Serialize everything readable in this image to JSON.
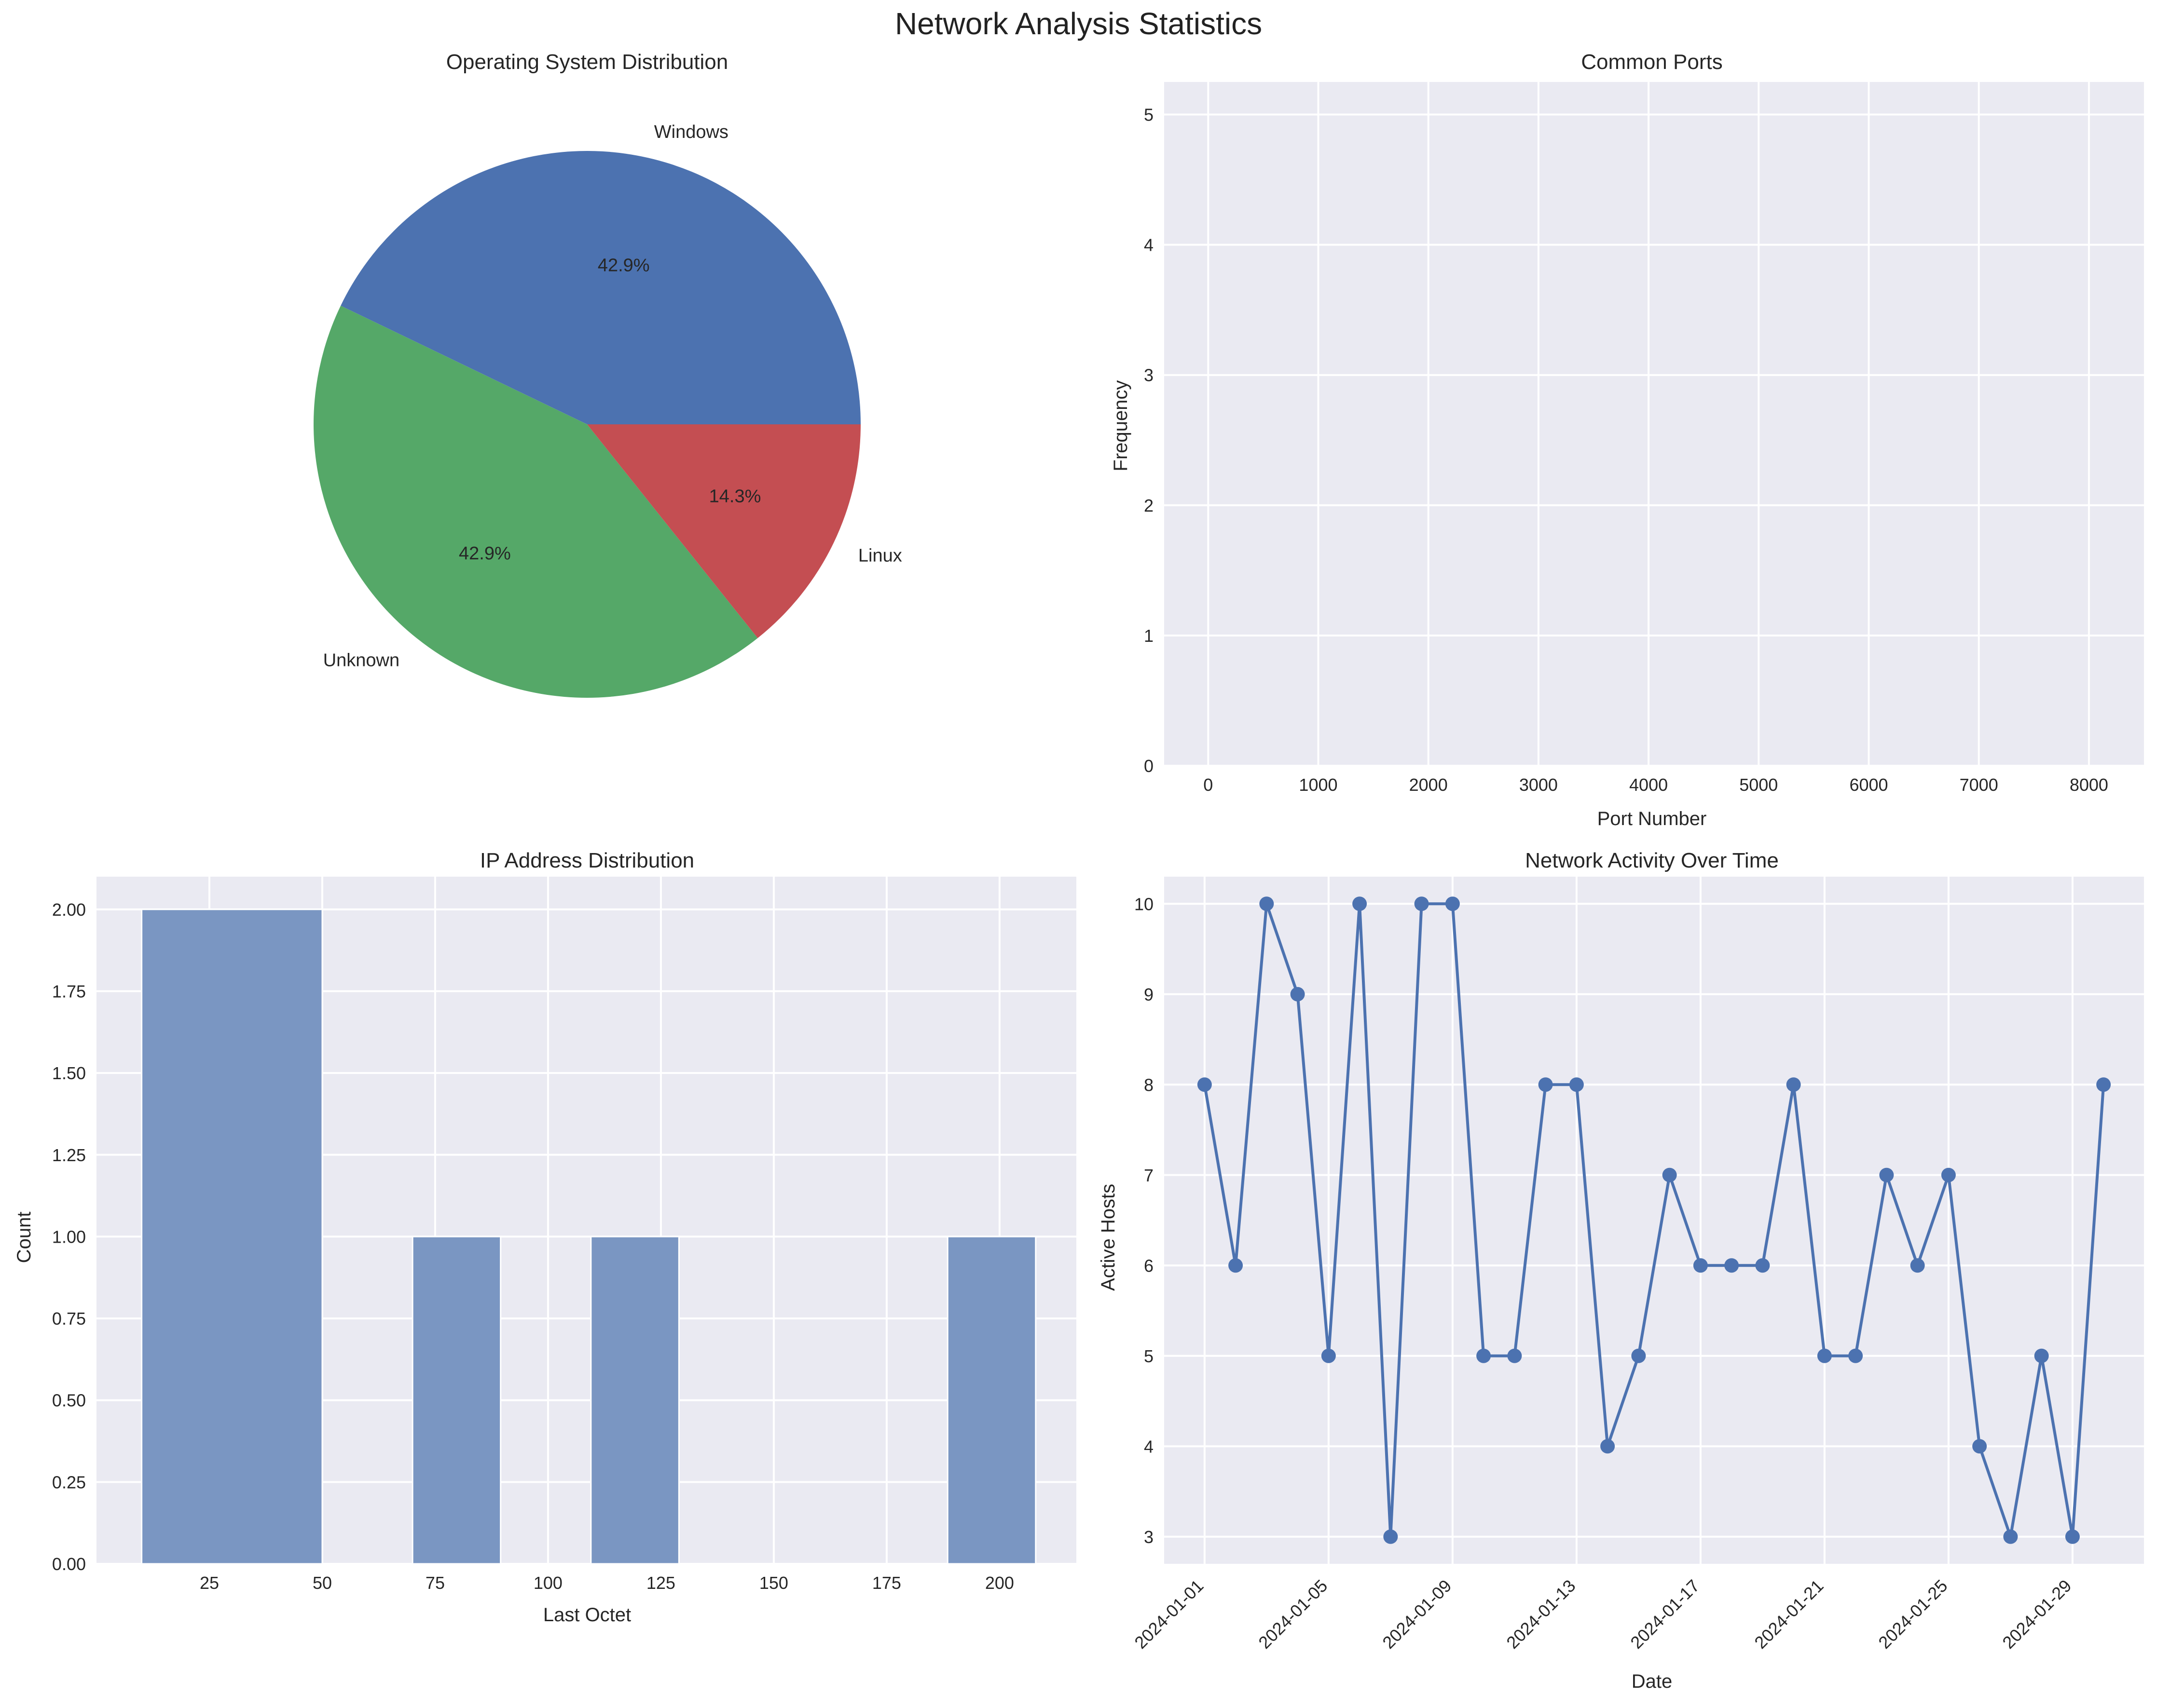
{
  "title": "Network Analysis Statistics",
  "colors": {
    "plot_bg": "#EAEAF2",
    "grid": "#FFFFFF",
    "blue": "#4C72B0",
    "green": "#55A868",
    "red": "#C44E52",
    "bar": "#7A96C2"
  },
  "chart_data": [
    {
      "type": "pie",
      "title": "Operating System Distribution",
      "labels": [
        "Windows",
        "Unknown",
        "Linux"
      ],
      "values": [
        3,
        3,
        1
      ],
      "percent_labels": [
        "42.9%",
        "42.9%",
        "14.3%"
      ],
      "colors": [
        "#4C72B0",
        "#55A868",
        "#C44E52"
      ],
      "start_angle_deg": 0
    },
    {
      "type": "bar",
      "title": "Common Ports",
      "xlabel": "Port Number",
      "ylabel": "Frequency",
      "xlim": [
        -400,
        8500
      ],
      "ylim": [
        0,
        5.25
      ],
      "xticks": [
        0,
        1000,
        2000,
        3000,
        4000,
        5000,
        6000,
        7000,
        8000
      ],
      "yticks": [
        0,
        1,
        2,
        3,
        4,
        5
      ],
      "categories": [],
      "values": [],
      "grid": true
    },
    {
      "type": "bar",
      "title": "IP Address Distribution",
      "xlabel": "Last Octet",
      "ylabel": "Count",
      "xlim": [
        0,
        217
      ],
      "ylim": [
        0,
        2.1
      ],
      "xticks": [
        25,
        50,
        75,
        100,
        125,
        150,
        175,
        200
      ],
      "yticks": [
        "0.00",
        "0.25",
        "0.50",
        "0.75",
        "1.00",
        "1.25",
        "1.50",
        "1.75",
        "2.00"
      ],
      "bins": [
        {
          "x0": 10,
          "x1": 50,
          "value": 2
        },
        {
          "x0": 70,
          "x1": 89.5,
          "value": 1
        },
        {
          "x0": 109.5,
          "x1": 129,
          "value": 1
        },
        {
          "x0": 188.5,
          "x1": 208,
          "value": 1
        }
      ],
      "grid": true
    },
    {
      "type": "line",
      "title": "Network Activity Over Time",
      "xlabel": "Date",
      "ylabel": "Active Hosts",
      "ylim": [
        2.7,
        10.3
      ],
      "yticks": [
        3,
        4,
        5,
        6,
        7,
        8,
        9,
        10
      ],
      "xticks": [
        "2024-01-01",
        "2024-01-05",
        "2024-01-09",
        "2024-01-13",
        "2024-01-17",
        "2024-01-21",
        "2024-01-25",
        "2024-01-29"
      ],
      "x": [
        "2024-01-01",
        "2024-01-02",
        "2024-01-03",
        "2024-01-04",
        "2024-01-05",
        "2024-01-06",
        "2024-01-07",
        "2024-01-08",
        "2024-01-09",
        "2024-01-10",
        "2024-01-11",
        "2024-01-12",
        "2024-01-13",
        "2024-01-14",
        "2024-01-15",
        "2024-01-16",
        "2024-01-17",
        "2024-01-18",
        "2024-01-19",
        "2024-01-20",
        "2024-01-21",
        "2024-01-22",
        "2024-01-23",
        "2024-01-24",
        "2024-01-25",
        "2024-01-26",
        "2024-01-27",
        "2024-01-28",
        "2024-01-29",
        "2024-01-30"
      ],
      "y": [
        8,
        6,
        10,
        9,
        5,
        10,
        3,
        10,
        10,
        5,
        5,
        8,
        8,
        4,
        5,
        7,
        6,
        6,
        6,
        8,
        5,
        5,
        7,
        6,
        7,
        4,
        3,
        5,
        3,
        8
      ],
      "marker": "circle",
      "grid": true
    }
  ]
}
